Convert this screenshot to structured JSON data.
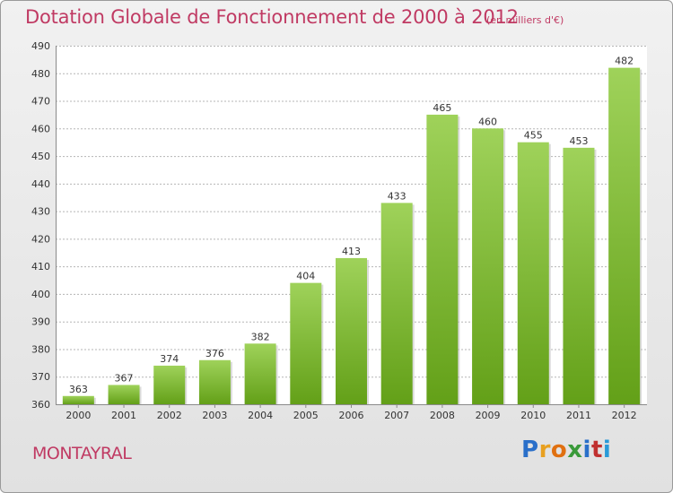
{
  "title": "Dotation Globale de Fonctionnement de 2000 à 2012",
  "subtitle": "(en milliers d'€)",
  "commune": "MONTAYRAL",
  "logo": {
    "letters": [
      "P",
      "r",
      "o",
      "x",
      "i",
      "t",
      "i"
    ],
    "colors": [
      "#2a6fc9",
      "#e8a020",
      "#e07010",
      "#3a9a3a",
      "#2a6fc9",
      "#c0302f",
      "#2a9ad8"
    ]
  },
  "colors": {
    "bar_top": "#9fd25a",
    "bar_bottom": "#63a018",
    "accent": "#c03a63"
  },
  "chart_data": {
    "type": "bar",
    "categories": [
      "2000",
      "2001",
      "2002",
      "2003",
      "2004",
      "2005",
      "2006",
      "2007",
      "2008",
      "2009",
      "2010",
      "2011",
      "2012"
    ],
    "values": [
      363,
      367,
      374,
      376,
      382,
      404,
      413,
      433,
      465,
      460,
      455,
      453,
      482
    ],
    "data_labels": [
      "363",
      "367",
      "374",
      "376",
      "382",
      "404",
      "413",
      "433",
      "465",
      "460",
      "455",
      "453",
      "482"
    ],
    "yticks": [
      "360",
      "370",
      "380",
      "390",
      "400",
      "410",
      "420",
      "430",
      "440",
      "450",
      "460",
      "470",
      "480",
      "490"
    ],
    "ylim": [
      360,
      490
    ],
    "grid": true
  }
}
